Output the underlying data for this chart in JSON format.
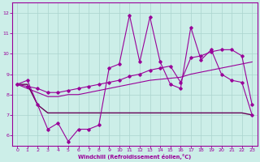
{
  "xlabel": "Windchill (Refroidissement éolien,°C)",
  "background_color": "#cceee8",
  "grid_color": "#aad4ce",
  "line_color1": "#990099",
  "line_color2": "#660055",
  "x_hours": [
    0,
    1,
    2,
    3,
    4,
    5,
    6,
    7,
    8,
    9,
    10,
    11,
    12,
    13,
    14,
    15,
    16,
    17,
    18,
    19,
    20,
    21,
    22,
    23
  ],
  "series_zigzag": [
    8.5,
    8.7,
    7.5,
    6.3,
    6.6,
    5.7,
    6.3,
    6.3,
    6.5,
    9.3,
    9.5,
    11.9,
    9.6,
    11.8,
    9.6,
    8.5,
    8.3,
    11.3,
    9.7,
    10.2,
    9.0,
    8.7,
    8.6,
    7.0
  ],
  "series_flat": [
    8.5,
    8.5,
    7.5,
    7.1,
    7.1,
    7.1,
    7.1,
    7.1,
    7.1,
    7.1,
    7.1,
    7.1,
    7.1,
    7.1,
    7.1,
    7.1,
    7.1,
    7.1,
    7.1,
    7.1,
    7.1,
    7.1,
    7.1,
    7.0
  ],
  "series_lower_rise": [
    8.5,
    8.3,
    8.1,
    7.9,
    7.9,
    8.0,
    8.0,
    8.1,
    8.2,
    8.3,
    8.4,
    8.5,
    8.6,
    8.7,
    8.75,
    8.8,
    8.85,
    9.0,
    9.1,
    9.2,
    9.3,
    9.4,
    9.5,
    9.6
  ],
  "series_upper_rise": [
    8.5,
    8.4,
    8.3,
    8.1,
    8.1,
    8.2,
    8.3,
    8.4,
    8.5,
    8.6,
    8.7,
    8.9,
    9.0,
    9.2,
    9.3,
    9.4,
    8.6,
    9.8,
    9.9,
    10.1,
    10.2,
    10.2,
    9.9,
    7.5
  ],
  "ylim": [
    5.5,
    12.5
  ],
  "xlim": [
    -0.5,
    23.5
  ],
  "yticks": [
    6,
    7,
    8,
    9,
    10,
    11,
    12
  ],
  "xticks": [
    0,
    1,
    2,
    3,
    4,
    5,
    6,
    7,
    8,
    9,
    10,
    11,
    12,
    13,
    14,
    15,
    16,
    17,
    18,
    19,
    20,
    21,
    22,
    23
  ]
}
